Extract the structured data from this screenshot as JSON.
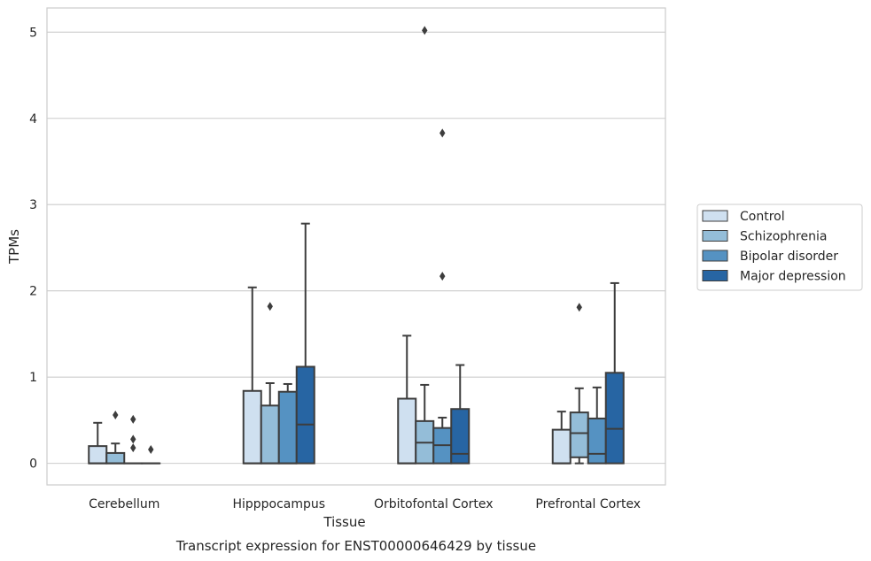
{
  "chart_data": {
    "type": "box",
    "caption": "Transcript expression for ENST00000646429 by tissue",
    "xlabel": "Tissue",
    "ylabel": "TPMs",
    "ylim": [
      -0.25,
      5.28
    ],
    "yticks": [
      0,
      1,
      2,
      3,
      4,
      5
    ],
    "grid": true,
    "legend_position": "right",
    "categories": [
      "Cerebellum",
      "Hipppocampus",
      "Orbitofontal Cortex",
      "Prefrontal Cortex"
    ],
    "series": [
      {
        "name": "Control",
        "color": "#cfe0f0",
        "boxes": [
          {
            "q1": 0,
            "median": 0,
            "q3": 0.2,
            "whisker_low": 0,
            "whisker_high": 0.47,
            "outliers": []
          },
          {
            "q1": 0,
            "median": 0,
            "q3": 0.84,
            "whisker_low": 0,
            "whisker_high": 2.04,
            "outliers": []
          },
          {
            "q1": 0,
            "median": 0,
            "q3": 0.75,
            "whisker_low": 0,
            "whisker_high": 1.48,
            "outliers": []
          },
          {
            "q1": 0,
            "median": 0,
            "q3": 0.39,
            "whisker_low": 0,
            "whisker_high": 0.6,
            "outliers": []
          }
        ]
      },
      {
        "name": "Schizophrenia",
        "color": "#94bdd8",
        "boxes": [
          {
            "q1": 0,
            "median": 0,
            "q3": 0.12,
            "whisker_low": 0,
            "whisker_high": 0.23,
            "outliers": [
              0.56
            ]
          },
          {
            "q1": 0,
            "median": 0,
            "q3": 0.67,
            "whisker_low": 0,
            "whisker_high": 0.93,
            "outliers": [
              1.82
            ]
          },
          {
            "q1": 0,
            "median": 0.24,
            "q3": 0.49,
            "whisker_low": 0,
            "whisker_high": 0.91,
            "outliers": [
              5.02
            ]
          },
          {
            "q1": 0.07,
            "median": 0.35,
            "q3": 0.59,
            "whisker_low": 0,
            "whisker_high": 0.87,
            "outliers": [
              1.81
            ]
          }
        ]
      },
      {
        "name": "Bipolar disorder",
        "color": "#5592c2",
        "boxes": [
          {
            "q1": 0,
            "median": 0,
            "q3": 0,
            "whisker_low": 0,
            "whisker_high": 0,
            "outliers": [
              0.51,
              0.28,
              0.18
            ]
          },
          {
            "q1": 0,
            "median": 0,
            "q3": 0.83,
            "whisker_low": 0,
            "whisker_high": 0.92,
            "outliers": []
          },
          {
            "q1": 0,
            "median": 0.21,
            "q3": 0.41,
            "whisker_low": 0,
            "whisker_high": 0.53,
            "outliers": [
              3.83,
              2.17
            ]
          },
          {
            "q1": 0,
            "median": 0.11,
            "q3": 0.52,
            "whisker_low": 0,
            "whisker_high": 0.88,
            "outliers": []
          }
        ]
      },
      {
        "name": "Major depression",
        "color": "#2765a3",
        "boxes": [
          {
            "q1": 0,
            "median": 0,
            "q3": 0,
            "whisker_low": 0,
            "whisker_high": 0,
            "outliers": [
              0.16
            ]
          },
          {
            "q1": 0,
            "median": 0.45,
            "q3": 1.12,
            "whisker_low": 0,
            "whisker_high": 2.78,
            "outliers": []
          },
          {
            "q1": 0,
            "median": 0.11,
            "q3": 0.63,
            "whisker_low": 0,
            "whisker_high": 1.14,
            "outliers": []
          },
          {
            "q1": 0,
            "median": 0.4,
            "q3": 1.05,
            "whisker_low": 0,
            "whisker_high": 2.09,
            "outliers": []
          }
        ]
      }
    ]
  }
}
